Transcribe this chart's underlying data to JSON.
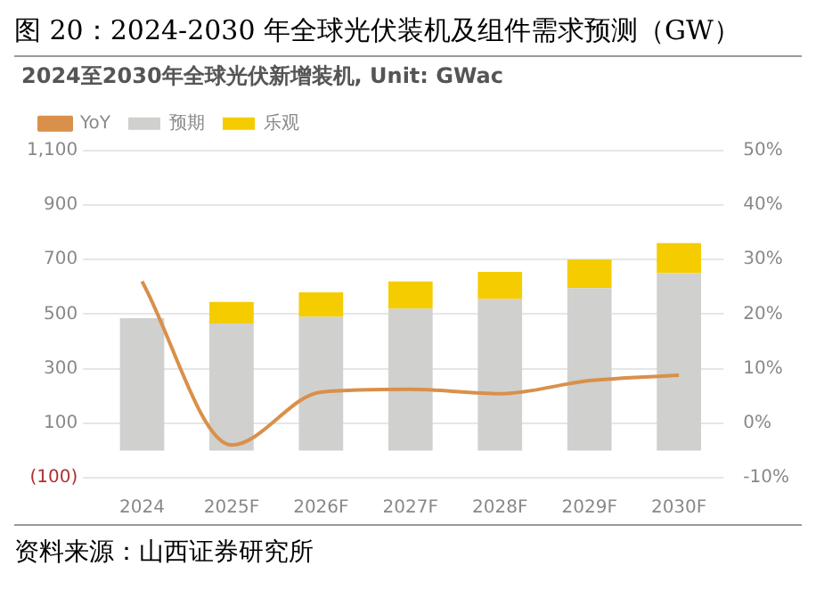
{
  "chart_data": {
    "type": "bar",
    "title": "图 20：2024-2030 年全球光伏装机及组件需求预测（GW）",
    "subtitle": "2024至2030年全球光伏新增装机, Unit: GWac",
    "categories": [
      "2024",
      "2025F",
      "2026F",
      "2027F",
      "2028F",
      "2029F",
      "2030F"
    ],
    "series": [
      {
        "name": "预期",
        "color": "#d0d0ce",
        "values": [
          485,
          465,
          490,
          520,
          555,
          595,
          650
        ]
      },
      {
        "name": "乐观",
        "color": "#f5cc00",
        "values": [
          null,
          80,
          90,
          100,
          100,
          105,
          110
        ]
      },
      {
        "name": "YoY",
        "type": "line",
        "axis": "y2",
        "color": "#d9904a",
        "values": [
          26,
          -4,
          5.7,
          6.2,
          5.4,
          7.8,
          8.8
        ]
      }
    ],
    "stacked": true,
    "marker": "none",
    "line_style": "solid",
    "grid": "y",
    "legend": "top left",
    "ylim": [
      -100,
      1100
    ],
    "yticks": [
      {
        "value": -100,
        "label": "(100)"
      },
      100,
      300,
      500,
      700,
      900,
      {
        "value": 1100,
        "label": "1,100"
      }
    ],
    "y2lim": [
      -10,
      50
    ],
    "y2ticks": [
      {
        "value": -10,
        "label": "-10%"
      },
      {
        "value": 0,
        "label": "0%"
      },
      {
        "value": 10,
        "label": "10%"
      },
      {
        "value": 20,
        "label": "20%"
      },
      {
        "value": 30,
        "label": "30%"
      },
      {
        "value": 40,
        "label": "40%"
      },
      {
        "value": 50,
        "label": "50%"
      }
    ],
    "annotations": [
      "资料来源：山西证券研究所"
    ]
  }
}
